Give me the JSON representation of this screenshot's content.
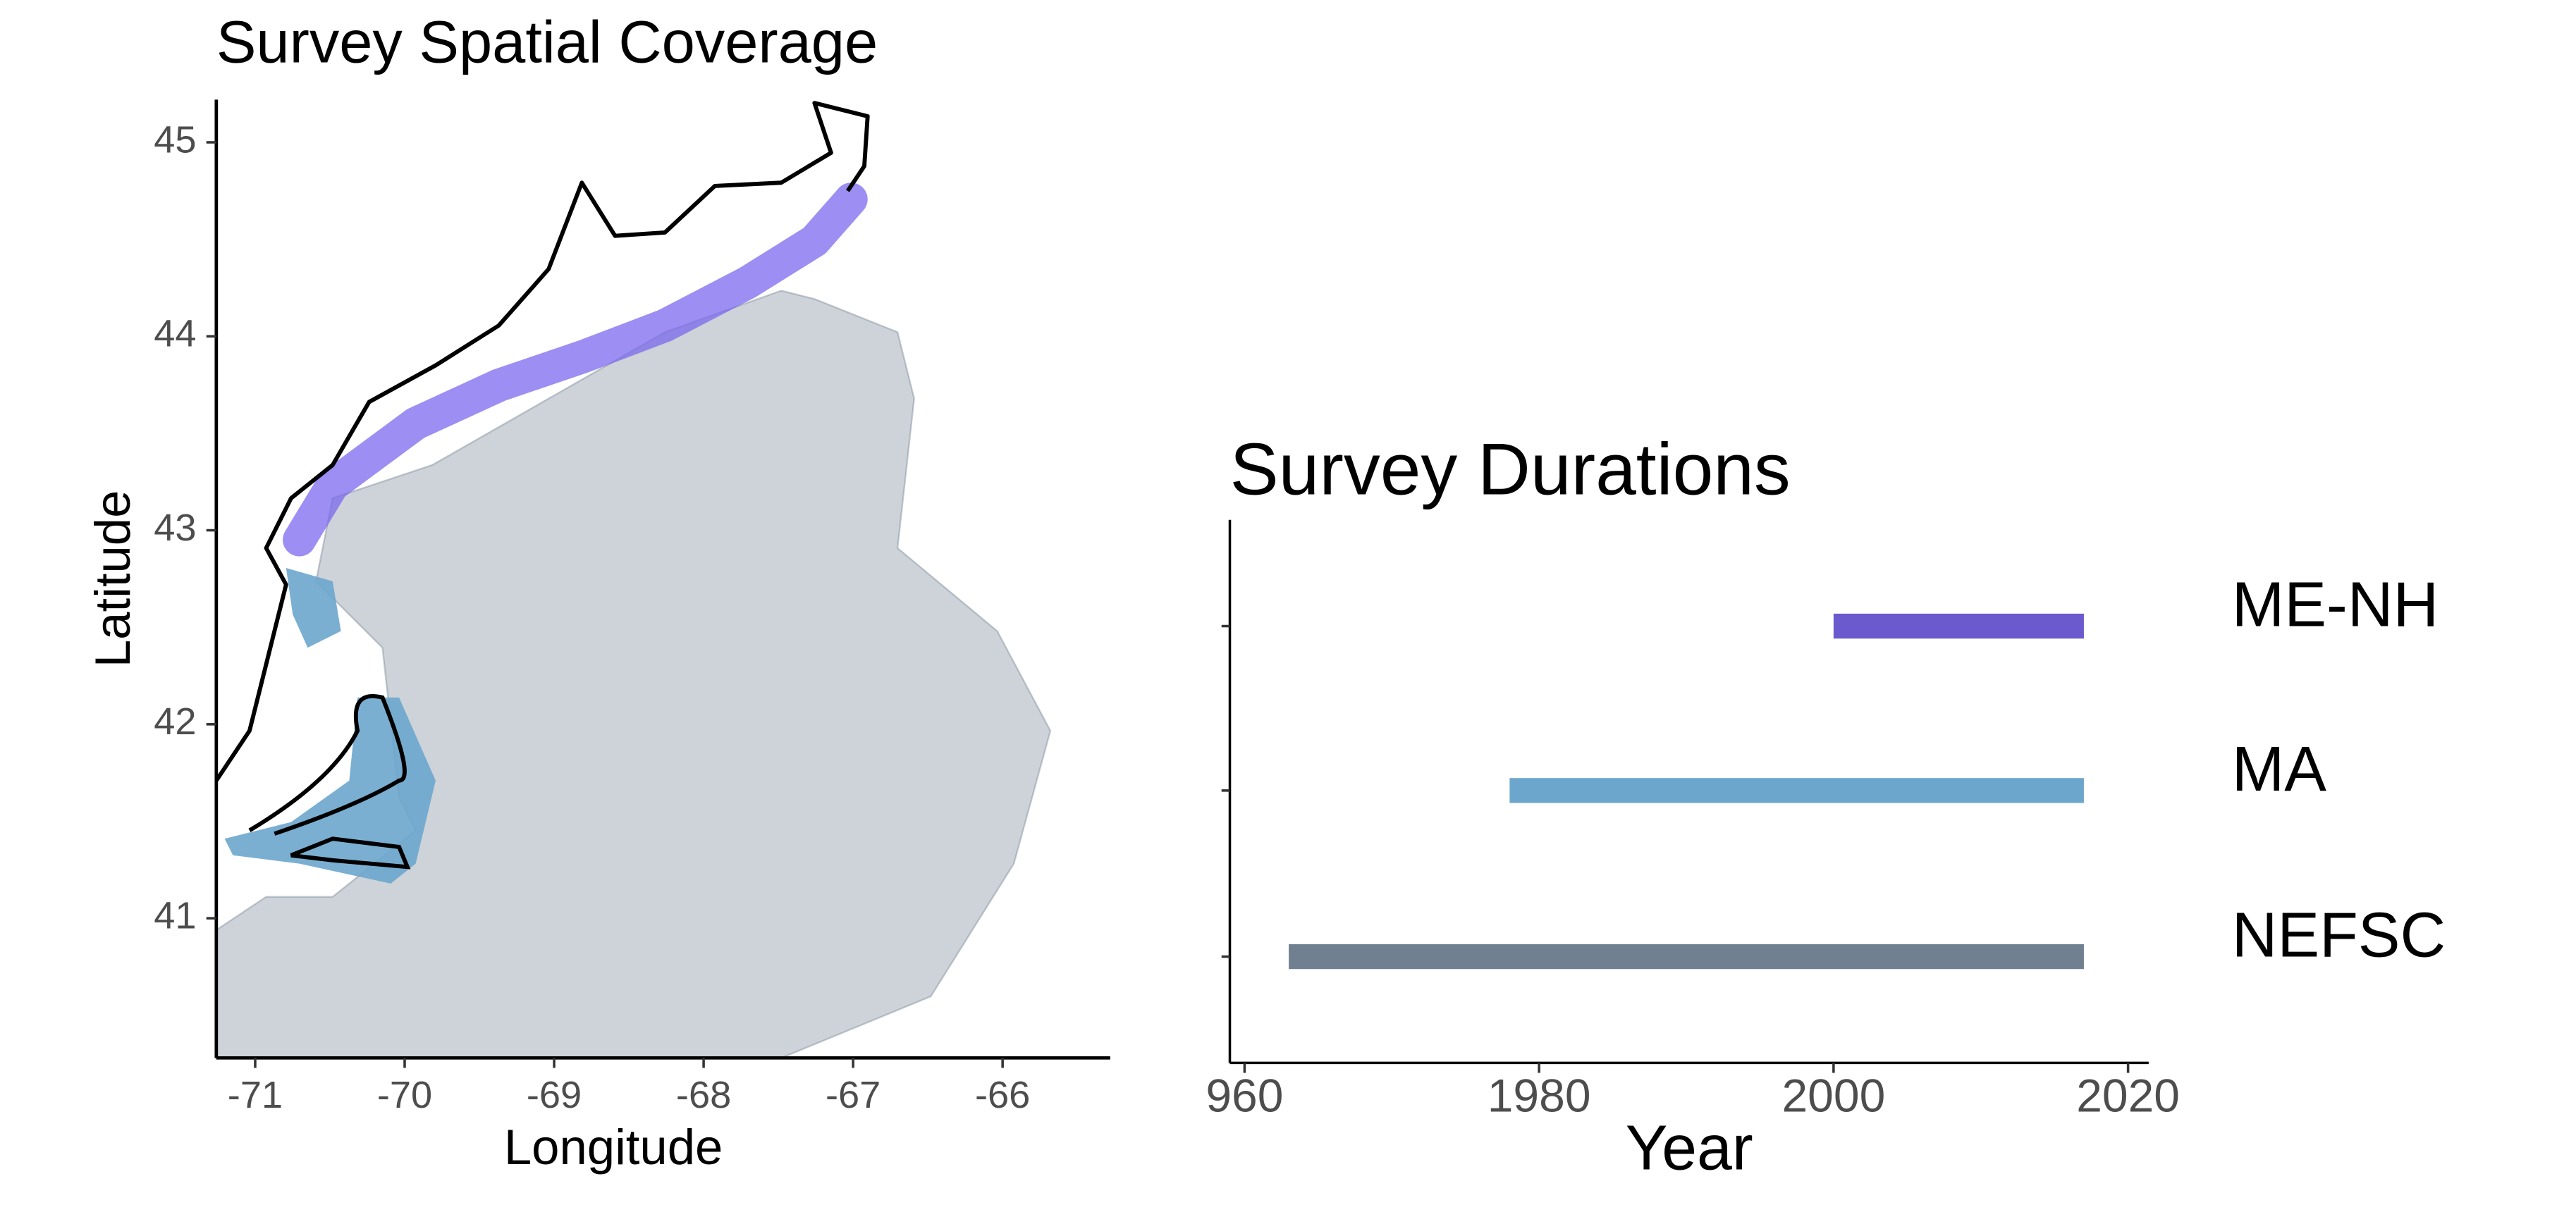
{
  "chart_data": [
    {
      "type": "map",
      "title": "Survey Spatial Coverage",
      "x_label": "Longitude",
      "y_label": "Latitude",
      "xlim": [
        -71.26,
        -65.28
      ],
      "ylim": [
        40.28,
        45.22
      ],
      "xticks": [
        -71,
        -70,
        -69,
        -68,
        -67,
        -66
      ],
      "yticks": [
        41,
        42,
        43,
        44,
        45
      ]
    },
    {
      "type": "range-bar",
      "title": "Survey Durations",
      "x_label": "Year",
      "categories": [
        "ME-NH",
        "MA",
        "NEFSC"
      ],
      "start": [
        2000,
        1978,
        1963
      ],
      "end": [
        2017,
        2017,
        2017
      ],
      "colors": [
        "#6a5acd",
        "#6ca6cd",
        "#708090"
      ],
      "xlim": [
        1959,
        2021.4
      ],
      "xticks": [
        {
          "value": 1960,
          "label": "960"
        },
        1980,
        2000,
        2020
      ]
    }
  ]
}
